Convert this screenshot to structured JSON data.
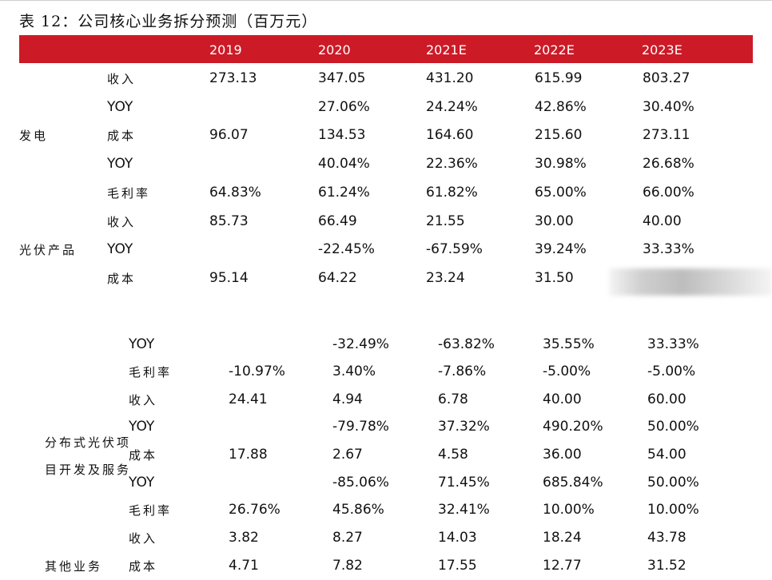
{
  "title": "表 12：公司核心业务拆分预测（百万元）",
  "header": [
    "2019",
    "2020",
    "2021E",
    "2022E",
    "2023E"
  ],
  "groups": {
    "power": "发电",
    "pv": "光伏产品",
    "dist1": "分布式光伏项",
    "dist2": "目开发及服务",
    "other": "其他业务"
  },
  "rows": [
    {
      "label": "收入",
      "values": [
        "273.13",
        "347.05",
        "431.20",
        "615.99",
        "803.27"
      ]
    },
    {
      "label": "YOY",
      "values": [
        "",
        "27.06%",
        "24.24%",
        "42.86%",
        "30.40%"
      ]
    },
    {
      "label": "成本",
      "values": [
        "96.07",
        "134.53",
        "164.60",
        "215.60",
        "273.11"
      ]
    },
    {
      "label": "YOY",
      "values": [
        "",
        "40.04%",
        "22.36%",
        "30.98%",
        "26.68%"
      ]
    },
    {
      "label": "毛利率",
      "values": [
        "64.83%",
        "61.24%",
        "61.82%",
        "65.00%",
        "66.00%"
      ]
    },
    {
      "label": "收入",
      "values": [
        "85.73",
        "66.49",
        "21.55",
        "30.00",
        "40.00"
      ]
    },
    {
      "label": "YOY",
      "values": [
        "",
        "-22.45%",
        "-67.59%",
        "39.24%",
        "33.33%"
      ]
    },
    {
      "label": "成本",
      "values": [
        "95.14",
        "64.22",
        "23.24",
        "31.50",
        ""
      ]
    },
    {
      "label": "YOY",
      "values": [
        "",
        "-32.49%",
        "-63.82%",
        "35.55%",
        "33.33%"
      ]
    },
    {
      "label": "毛利率",
      "values": [
        "-10.97%",
        "3.40%",
        "-7.86%",
        "-5.00%",
        "-5.00%"
      ]
    },
    {
      "label": "收入",
      "values": [
        "24.41",
        "4.94",
        "6.78",
        "40.00",
        "60.00"
      ]
    },
    {
      "label": "YOY",
      "values": [
        "",
        "-79.78%",
        "37.32%",
        "490.20%",
        "50.00%"
      ]
    },
    {
      "label": "成本",
      "values": [
        "17.88",
        "2.67",
        "4.58",
        "36.00",
        "54.00"
      ]
    },
    {
      "label": "YOY",
      "values": [
        "",
        "-85.06%",
        "71.45%",
        "685.84%",
        "50.00%"
      ]
    },
    {
      "label": "毛利率",
      "values": [
        "26.76%",
        "45.86%",
        "32.41%",
        "10.00%",
        "10.00%"
      ]
    },
    {
      "label": "收入",
      "values": [
        "3.82",
        "8.27",
        "14.03",
        "18.24",
        "43.78"
      ]
    },
    {
      "label": "成本",
      "values": [
        "4.71",
        "7.82",
        "17.55",
        "12.77",
        "31.52"
      ]
    }
  ],
  "colors": {
    "header_bg": "#cc1a27",
    "header_text": "#ffffff"
  }
}
